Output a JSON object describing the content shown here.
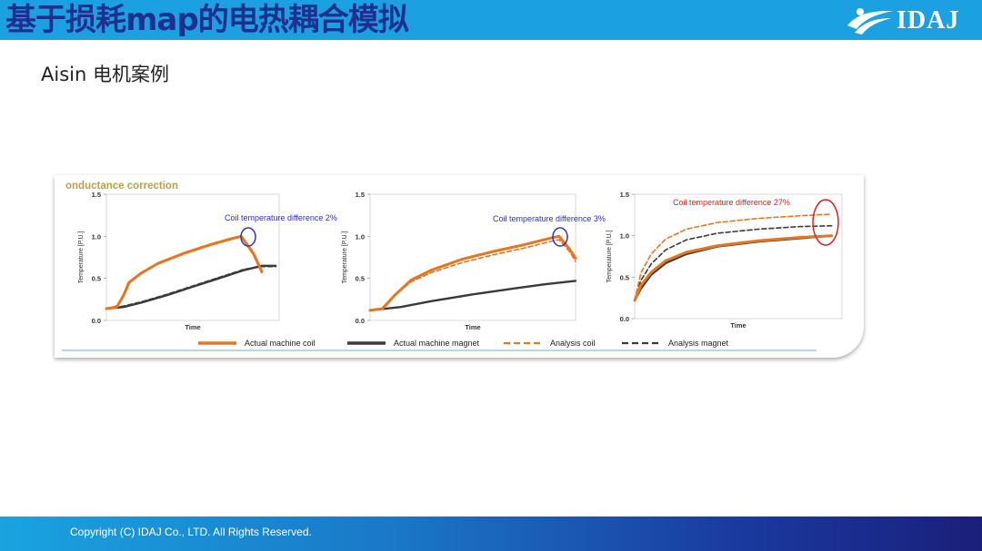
{
  "header": {
    "title": "基于损耗map的电热耦合模拟",
    "logo_text": "IDAJ",
    "logo_icon": "idaj-swoosh-logo"
  },
  "subtitle": "Aisin 电机案例",
  "figure": {
    "heading": "onductance correction"
  },
  "chart_data": [
    {
      "type": "line",
      "xlabel": "Time",
      "ylabel": "Temperature [P.U.]",
      "ylim": [
        0,
        1.5
      ],
      "yticks": [
        "0.0",
        "0.5",
        "1.0",
        "1.5"
      ],
      "annotation": "Coil temperature difference 2%",
      "annotation_color": "#3030c0",
      "series": [
        {
          "name": "Actual machine coil",
          "style": "solid",
          "color": "#e8761e",
          "x": [
            0,
            0.06,
            0.1,
            0.13,
            0.2,
            0.3,
            0.45,
            0.6,
            0.72,
            0.78,
            0.85,
            0.9
          ],
          "y": [
            0.14,
            0.16,
            0.3,
            0.45,
            0.56,
            0.68,
            0.8,
            0.9,
            0.97,
            1.0,
            0.8,
            0.58
          ]
        },
        {
          "name": "Actual machine magnet",
          "style": "solid",
          "color": "#3a3a3a",
          "x": [
            0,
            0.1,
            0.2,
            0.35,
            0.5,
            0.65,
            0.8,
            0.9,
            0.98
          ],
          "y": [
            0.14,
            0.16,
            0.21,
            0.3,
            0.4,
            0.5,
            0.6,
            0.65,
            0.65
          ]
        },
        {
          "name": "Analysis coil",
          "style": "dashed",
          "color": "#e8761e",
          "x": [
            0,
            0.07,
            0.11,
            0.14,
            0.2,
            0.3,
            0.45,
            0.6,
            0.72,
            0.78,
            0.85,
            0.9
          ],
          "y": [
            0.14,
            0.18,
            0.33,
            0.47,
            0.57,
            0.67,
            0.79,
            0.89,
            0.96,
            0.99,
            0.78,
            0.56
          ]
        },
        {
          "name": "Analysis magnet",
          "style": "dashed",
          "color": "#3a3a3a",
          "x": [
            0,
            0.1,
            0.2,
            0.35,
            0.5,
            0.65,
            0.8,
            0.9,
            0.98
          ],
          "y": [
            0.14,
            0.17,
            0.22,
            0.31,
            0.41,
            0.51,
            0.61,
            0.64,
            0.64
          ]
        }
      ]
    },
    {
      "type": "line",
      "xlabel": "Time",
      "ylabel": "Temperature [P.U.]",
      "ylim": [
        0,
        1.5
      ],
      "yticks": [
        "0.0",
        "0.5",
        "1.0",
        "1.5"
      ],
      "annotation": "Coil temperature difference 3%",
      "annotation_color": "#3030c0",
      "series": [
        {
          "name": "Actual machine coil",
          "style": "solid",
          "color": "#e8761e",
          "x": [
            0,
            0.06,
            0.12,
            0.2,
            0.3,
            0.45,
            0.6,
            0.75,
            0.88,
            0.92,
            0.97,
            1.0
          ],
          "y": [
            0.12,
            0.14,
            0.3,
            0.48,
            0.6,
            0.73,
            0.82,
            0.9,
            0.98,
            1.0,
            0.85,
            0.74
          ]
        },
        {
          "name": "Actual machine magnet",
          "style": "solid",
          "color": "#3a3a3a",
          "x": [
            0,
            0.15,
            0.3,
            0.5,
            0.7,
            0.85,
            1.0
          ],
          "y": [
            0.12,
            0.16,
            0.23,
            0.31,
            0.38,
            0.43,
            0.47
          ]
        },
        {
          "name": "Analysis coil",
          "style": "dashed",
          "color": "#e8761e",
          "x": [
            0,
            0.07,
            0.13,
            0.2,
            0.3,
            0.45,
            0.6,
            0.75,
            0.88,
            0.92,
            0.97,
            1.0
          ],
          "y": [
            0.12,
            0.15,
            0.32,
            0.46,
            0.57,
            0.69,
            0.78,
            0.86,
            0.94,
            0.96,
            0.82,
            0.7
          ]
        },
        {
          "name": "Analysis magnet",
          "style": "dashed",
          "color": "#3a3a3a",
          "x": [
            0,
            0.15,
            0.3,
            0.5,
            0.7,
            0.85,
            1.0
          ],
          "y": [
            0.12,
            0.16,
            0.23,
            0.31,
            0.38,
            0.43,
            0.47
          ]
        }
      ]
    },
    {
      "type": "line",
      "xlabel": "Time",
      "ylabel": "Temperature [P.U.]",
      "ylim": [
        0,
        1.5
      ],
      "yticks": [
        "0.0",
        "0.5",
        "1.0",
        "1.5"
      ],
      "annotation": "Coil temperature difference 27%",
      "annotation_color": "#e02020",
      "series": [
        {
          "name": "Actual machine coil",
          "style": "solid",
          "color": "#e8761e",
          "x": [
            0,
            0.03,
            0.08,
            0.15,
            0.25,
            0.4,
            0.6,
            0.8,
            0.95
          ],
          "y": [
            0.22,
            0.4,
            0.56,
            0.7,
            0.8,
            0.88,
            0.94,
            0.98,
            1.0
          ]
        },
        {
          "name": "Actual machine magnet",
          "style": "solid",
          "color": "#3a3a3a",
          "x": [
            0,
            0.03,
            0.08,
            0.15,
            0.25,
            0.4,
            0.6,
            0.8,
            0.95
          ],
          "y": [
            0.22,
            0.36,
            0.53,
            0.67,
            0.78,
            0.87,
            0.93,
            0.97,
            1.0
          ]
        },
        {
          "name": "Analysis coil",
          "style": "dashed",
          "color": "#e8761e",
          "x": [
            0,
            0.03,
            0.08,
            0.15,
            0.25,
            0.4,
            0.6,
            0.8,
            0.95
          ],
          "y": [
            0.22,
            0.55,
            0.78,
            0.96,
            1.08,
            1.16,
            1.21,
            1.24,
            1.26
          ]
        },
        {
          "name": "Analysis magnet",
          "style": "dashed",
          "color": "#3a3a3a",
          "x": [
            0,
            0.03,
            0.08,
            0.15,
            0.25,
            0.4,
            0.6,
            0.8,
            0.95
          ],
          "y": [
            0.22,
            0.46,
            0.66,
            0.83,
            0.95,
            1.03,
            1.08,
            1.11,
            1.12
          ]
        }
      ]
    }
  ],
  "legend": [
    {
      "label": "Actual machine coil",
      "style": "solid",
      "color": "#e8761e"
    },
    {
      "label": "Actual machine magnet",
      "style": "solid",
      "color": "#3a3a3a"
    },
    {
      "label": "Analysis coil",
      "style": "dashed",
      "color": "#e8761e"
    },
    {
      "label": "Analysis magnet",
      "style": "dashed",
      "color": "#3a3a3a"
    }
  ],
  "footer": {
    "copyright": "Copyright (C)  IDAJ Co., LTD. All Rights Reserved."
  },
  "colors": {
    "title_bar": "#1ba1e2",
    "title_text": "#1f2f8f",
    "accent_orange": "#e8761e",
    "dark_line": "#3a3a3a",
    "highlight_blue": "#3030c0",
    "highlight_red": "#e02020"
  }
}
